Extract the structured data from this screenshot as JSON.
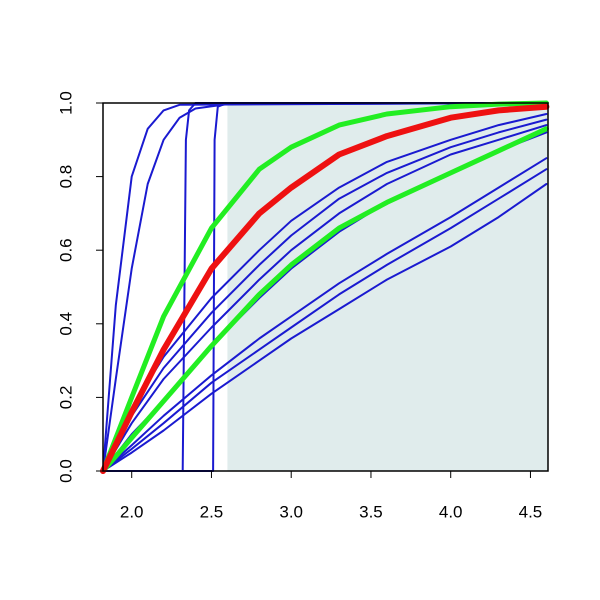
{
  "chart_data": {
    "type": "line",
    "xlim": [
      1.82,
      4.61
    ],
    "ylim": [
      0,
      1
    ],
    "xticks": [
      {
        "value": 2,
        "label": "2.0"
      },
      2.5,
      {
        "value": 3,
        "label": "3.0"
      },
      3.5,
      {
        "value": 4,
        "label": "4.0"
      },
      4.5
    ],
    "yticks": [
      {
        "value": 0,
        "label": "0.0"
      },
      0.2,
      0.4,
      0.6,
      0.8,
      {
        "value": 1,
        "label": "1.0"
      }
    ],
    "shade": {
      "x": [
        2.6,
        4.61
      ],
      "color": "#e0ecec"
    },
    "series": [
      {
        "color": "#1a1ad0",
        "line_width": 2,
        "x": [
          1.82,
          1.9,
          2.0,
          2.1,
          2.2,
          2.3,
          4.6
        ],
        "values": [
          0,
          0.45,
          0.8,
          0.93,
          0.98,
          0.995,
          1
        ]
      },
      {
        "color": "#1a1ad0",
        "line_width": 2,
        "x": [
          1.82,
          1.9,
          2.0,
          2.1,
          2.2,
          2.3,
          2.4,
          2.6,
          4.6
        ],
        "values": [
          0,
          0.25,
          0.55,
          0.78,
          0.9,
          0.96,
          0.985,
          0.997,
          1
        ]
      },
      {
        "color": "#1a1ad0",
        "line_width": 2,
        "x": [
          1.82,
          2.32,
          2.34,
          2.36,
          2.4,
          4.6
        ],
        "values": [
          0,
          0,
          0.9,
          0.98,
          1,
          1
        ]
      },
      {
        "color": "#1a1ad0",
        "line_width": 2,
        "x": [
          1.82,
          2.51,
          2.52,
          2.54,
          2.6,
          4.6
        ],
        "values": [
          0,
          0,
          0.9,
          0.99,
          1,
          1
        ]
      },
      {
        "color": "#1a1ad0",
        "line_width": 2,
        "x": [
          1.82,
          2.0,
          2.2,
          2.5,
          2.8,
          3.0,
          3.3,
          3.6,
          4.0,
          4.3,
          4.6
        ],
        "values": [
          0,
          0.17,
          0.31,
          0.47,
          0.6,
          0.68,
          0.77,
          0.84,
          0.9,
          0.94,
          0.97
        ]
      },
      {
        "color": "#1a1ad0",
        "line_width": 2,
        "x": [
          1.82,
          2.0,
          2.2,
          2.5,
          2.8,
          3.0,
          3.3,
          3.6,
          4.0,
          4.3,
          4.6
        ],
        "values": [
          0,
          0.15,
          0.28,
          0.43,
          0.56,
          0.64,
          0.74,
          0.81,
          0.88,
          0.92,
          0.955
        ]
      },
      {
        "color": "#1a1ad0",
        "line_width": 2,
        "x": [
          1.82,
          2.0,
          2.2,
          2.5,
          2.8,
          3.0,
          3.3,
          3.6,
          4.0,
          4.3,
          4.6
        ],
        "values": [
          0,
          0.13,
          0.25,
          0.39,
          0.52,
          0.6,
          0.7,
          0.78,
          0.86,
          0.9,
          0.94
        ]
      },
      {
        "color": "#1a1ad0",
        "line_width": 2,
        "x": [
          1.82,
          2.0,
          2.2,
          2.5,
          2.8,
          3.0,
          3.3,
          3.6,
          4.0,
          4.3,
          4.6
        ],
        "values": [
          0,
          0.1,
          0.19,
          0.34,
          0.47,
          0.55,
          0.65,
          0.73,
          0.81,
          0.87,
          0.92
        ]
      },
      {
        "color": "#1a1ad0",
        "line_width": 2,
        "x": [
          1.82,
          2.0,
          2.2,
          2.5,
          2.8,
          3.0,
          3.3,
          3.6,
          4.0,
          4.3,
          4.6
        ],
        "values": [
          0,
          0.07,
          0.15,
          0.26,
          0.36,
          0.42,
          0.51,
          0.59,
          0.69,
          0.77,
          0.85
        ]
      },
      {
        "color": "#1a1ad0",
        "line_width": 2,
        "x": [
          1.82,
          2.0,
          2.2,
          2.5,
          2.8,
          3.0,
          3.3,
          3.6,
          4.0,
          4.3,
          4.6
        ],
        "values": [
          0,
          0.06,
          0.13,
          0.24,
          0.33,
          0.39,
          0.48,
          0.56,
          0.66,
          0.74,
          0.82
        ]
      },
      {
        "color": "#1a1ad0",
        "line_width": 2,
        "x": [
          1.82,
          2.0,
          2.2,
          2.5,
          2.8,
          3.0,
          3.3,
          3.6,
          4.0,
          4.3,
          4.6
        ],
        "values": [
          0,
          0.05,
          0.11,
          0.21,
          0.3,
          0.36,
          0.44,
          0.52,
          0.61,
          0.69,
          0.78
        ]
      },
      {
        "color": "#22ee22",
        "line_width": 5,
        "x": [
          1.82,
          2.0,
          2.2,
          2.5,
          2.8,
          3.0,
          3.3,
          3.6,
          4.0,
          4.3,
          4.6
        ],
        "values": [
          0,
          0.2,
          0.42,
          0.66,
          0.82,
          0.88,
          0.94,
          0.97,
          0.99,
          0.997,
          1
        ]
      },
      {
        "color": "#22ee22",
        "line_width": 5,
        "x": [
          1.82,
          2.0,
          2.2,
          2.5,
          2.8,
          3.0,
          3.3,
          3.6,
          4.0,
          4.3,
          4.6
        ],
        "values": [
          0,
          0.09,
          0.19,
          0.34,
          0.48,
          0.56,
          0.66,
          0.73,
          0.81,
          0.87,
          0.93
        ]
      },
      {
        "color": "#ee1111",
        "line_width": 6,
        "x": [
          1.82,
          2.0,
          2.2,
          2.5,
          2.8,
          3.0,
          3.3,
          3.6,
          4.0,
          4.3,
          4.6
        ],
        "values": [
          0,
          0.16,
          0.33,
          0.55,
          0.7,
          0.77,
          0.86,
          0.91,
          0.96,
          0.98,
          0.99
        ]
      }
    ]
  }
}
